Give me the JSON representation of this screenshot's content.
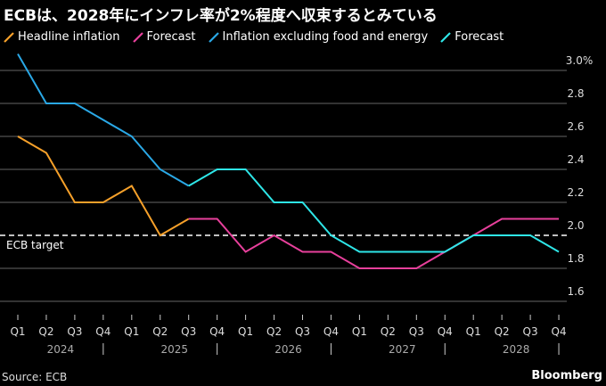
{
  "title": "ECBは、2028年にインフレ率が2%程度へ収束するとみている",
  "source": "Source: ECB",
  "brand": "Bloomberg",
  "chart_data": {
    "type": "line",
    "categories": [
      "Q1",
      "Q2",
      "Q3",
      "Q4",
      "Q1",
      "Q2",
      "Q3",
      "Q4",
      "Q1",
      "Q2",
      "Q3",
      "Q4",
      "Q1",
      "Q2",
      "Q3",
      "Q4",
      "Q1",
      "Q2",
      "Q3",
      "Q4"
    ],
    "years": [
      "2024",
      "2025",
      "2026",
      "2027",
      "2028"
    ],
    "ylim": [
      1.5,
      3.1
    ],
    "yticks": [
      {
        "v": 3.0,
        "label": "3.0%"
      },
      {
        "v": 2.8,
        "label": "2.8"
      },
      {
        "v": 2.6,
        "label": "2.6"
      },
      {
        "v": 2.4,
        "label": "2.4"
      },
      {
        "v": 2.2,
        "label": "2.2"
      },
      {
        "v": 2.0,
        "label": "2.0"
      },
      {
        "v": 1.8,
        "label": "1.8"
      },
      {
        "v": 1.6,
        "label": "1.6"
      }
    ],
    "grid": true,
    "legend_position": "top",
    "reference_line": {
      "value": 2.0,
      "label": "ECB target"
    },
    "series": [
      {
        "name": "Headline inflation",
        "color": "#f5a02a",
        "values": [
          2.6,
          2.5,
          2.2,
          2.2,
          2.3,
          2.0,
          2.1,
          null,
          null,
          null,
          null,
          null,
          null,
          null,
          null,
          null,
          null,
          null,
          null,
          null
        ]
      },
      {
        "name": "Forecast",
        "color": "#e8409c",
        "values": [
          null,
          null,
          null,
          null,
          null,
          null,
          2.1,
          2.1,
          1.9,
          2.0,
          1.9,
          1.9,
          1.8,
          1.8,
          1.8,
          1.9,
          2.0,
          2.1,
          2.1,
          2.1
        ]
      },
      {
        "name": "Inflation excluding food and energy",
        "color": "#2aa8e6",
        "values": [
          3.1,
          2.8,
          2.8,
          2.7,
          2.6,
          2.4,
          2.3,
          null,
          null,
          null,
          null,
          null,
          null,
          null,
          null,
          null,
          null,
          null,
          null,
          null
        ]
      },
      {
        "name": "Forecast",
        "color": "#2ee6e8",
        "values": [
          null,
          null,
          null,
          null,
          null,
          null,
          2.3,
          2.4,
          2.4,
          2.2,
          2.2,
          2.0,
          1.9,
          1.9,
          1.9,
          1.9,
          2.0,
          2.0,
          2.0,
          1.9
        ]
      }
    ]
  }
}
